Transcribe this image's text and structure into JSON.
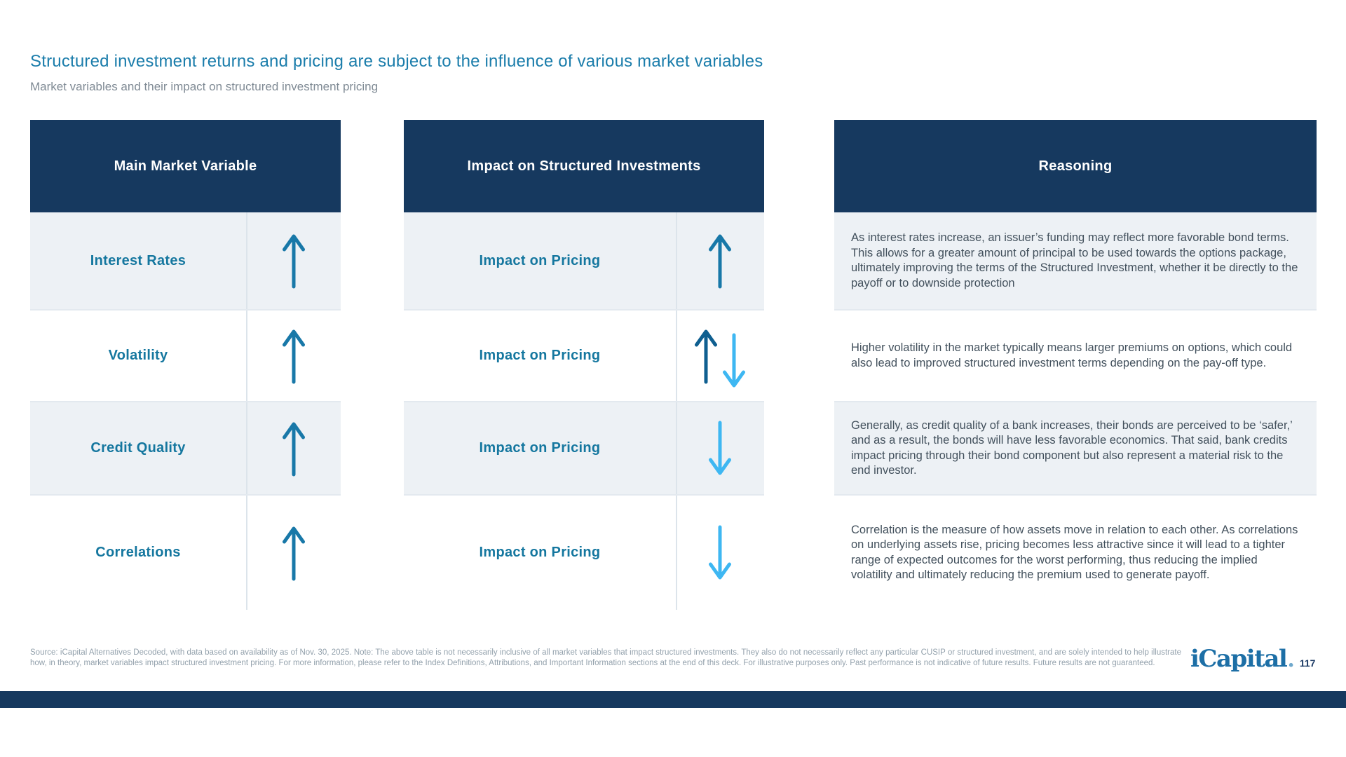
{
  "slide": {
    "title": "Structured investment returns and pricing are subject to the influence of various market variables",
    "subtitle": "Market variables and their impact on structured investment pricing"
  },
  "table": {
    "headers": [
      "Main Market Variable",
      "Impact on Structured Investments",
      "Reasoning"
    ],
    "rows": [
      {
        "variable": "Interest Rates",
        "variable_direction": "up",
        "impact_label": "Impact on Pricing",
        "impact_direction": "up",
        "reasoning": "As interest rates increase, an issuer’s funding may reflect more favorable bond terms. This allows for a greater amount of principal to be used towards the options package, ultimately improving the terms of the Structured Investment, whether it be directly to the payoff or to downside protection"
      },
      {
        "variable": "Volatility",
        "variable_direction": "up",
        "impact_label": "Impact on Pricing",
        "impact_direction": "up-down",
        "reasoning": "Higher volatility in the market typically means larger premiums on options, which could also lead to improved structured investment terms depending on the pay-off type."
      },
      {
        "variable": "Credit Quality",
        "variable_direction": "up",
        "impact_label": "Impact on Pricing",
        "impact_direction": "down",
        "reasoning": "Generally, as credit quality of a bank increases, their bonds are perceived to be ‘safer,’ and as a result, the bonds will have less favorable economics. That said, bank credits impact pricing through their bond component but also represent a material risk to the end investor."
      },
      {
        "variable": "Correlations",
        "variable_direction": "up",
        "impact_label": "Impact on Pricing",
        "impact_direction": "down",
        "reasoning": "Correlation is the measure of how assets move in relation to each other. As correlations on underlying assets rise, pricing becomes less attractive since it will lead to a tighter range of expected outcomes for the worst performing, thus reducing the implied volatility and ultimately reducing the premium used to generate payoff."
      }
    ]
  },
  "footer": {
    "source": "Source: iCapital Alternatives Decoded, with data based on availability as of Nov. 30, 2025. Note: The above table is not necessarily inclusive of all market variables that impact structured investments. They also do not necessarily reflect any particular CUSIP or structured investment, and are solely intended to help illustrate how, in theory, market variables impact structured investment pricing. For more information, please refer to the Index Definitions, Attributions, and Important Information sections at the end of this deck. For illustrative purposes only. Past performance is not indicative of future results. Future results are not guaranteed.",
    "logo": "iCapital",
    "logo_dot": ".",
    "page_number": "117"
  },
  "colors": {
    "navy": "#16395F",
    "teal": "#15779F",
    "arrow_up": "#1878A8",
    "arrow_up_dark": "#0F5F90",
    "arrow_down": "#3EB7F2"
  }
}
